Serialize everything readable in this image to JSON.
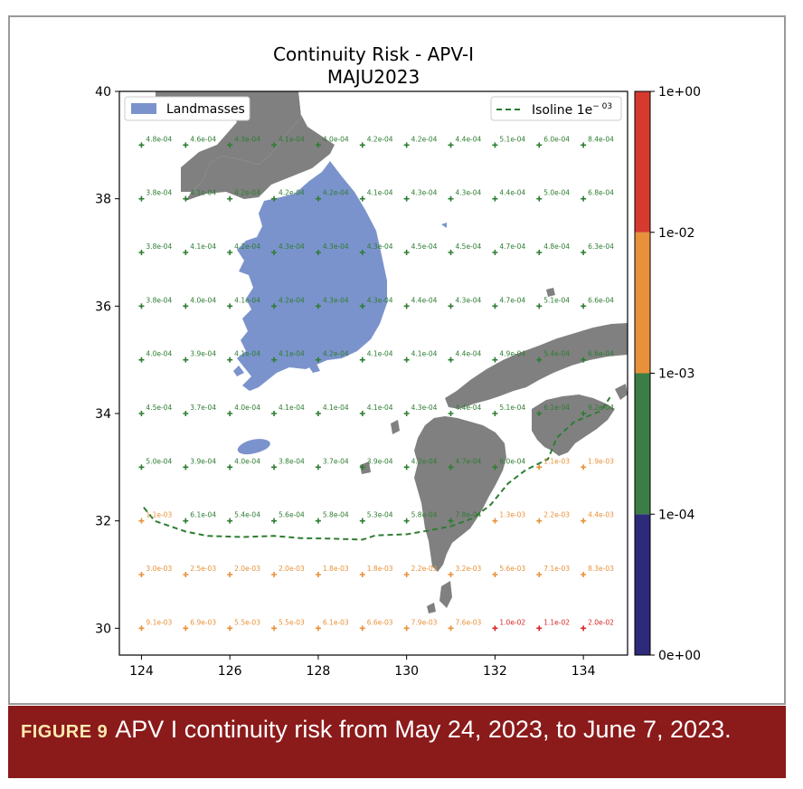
{
  "chart_data": {
    "type": "scatter",
    "title": "Continuity Risk - APV-I",
    "subtitle": "MAJU2023",
    "xlim": [
      123.5,
      135.0
    ],
    "ylim": [
      29.5,
      40.0
    ],
    "xticks": [
      124,
      126,
      128,
      130,
      132,
      134
    ],
    "yticks": [
      30,
      32,
      34,
      36,
      38,
      40
    ],
    "grid": false,
    "legend": {
      "left": {
        "label": "Landmasses",
        "color": "#7b93cc",
        "placement": "top-left"
      },
      "right": {
        "label": "Isoline 1e",
        "superscript": "− 03",
        "color": "#2e7d32",
        "placement": "top-right"
      }
    },
    "colorbar": {
      "tick_labels": [
        "1e+00",
        "1e-02",
        "1e-03",
        "1e-04",
        "0e+00"
      ],
      "colors": [
        "#2d2a7a",
        "#3b7d45",
        "#e8913a",
        "#d63a2e"
      ]
    },
    "lons": [
      124,
      125,
      126,
      127,
      128,
      129,
      130,
      131,
      132,
      133,
      134
    ],
    "rows": [
      {
        "lat": 39,
        "labels": [
          "4.8e-04",
          "4.6e-04",
          "4.3e-04",
          "4.1e-04",
          "4.0e-04",
          "4.2e-04",
          "4.2e-04",
          "4.4e-04",
          "5.1e-04",
          "6.0e-04",
          "8.4e-04"
        ]
      },
      {
        "lat": 38,
        "labels": [
          "3.8e-04",
          "4.1e-04",
          "4.2e-04",
          "4.2e-04",
          "4.2e-04",
          "4.1e-04",
          "4.3e-04",
          "4.3e-04",
          "4.4e-04",
          "5.0e-04",
          "6.8e-04"
        ]
      },
      {
        "lat": 37,
        "labels": [
          "3.8e-04",
          "4.1e-04",
          "4.2e-04",
          "4.3e-04",
          "4.3e-04",
          "4.3e-04",
          "4.5e-04",
          "4.5e-04",
          "4.7e-04",
          "4.8e-04",
          "6.3e-04"
        ]
      },
      {
        "lat": 36,
        "labels": [
          "3.8e-04",
          "4.0e-04",
          "4.1e-04",
          "4.2e-04",
          "4.3e-04",
          "4.3e-04",
          "4.4e-04",
          "4.3e-04",
          "4.7e-04",
          "5.1e-04",
          "6.6e-04"
        ]
      },
      {
        "lat": 35,
        "labels": [
          "4.0e-04",
          "3.9e-04",
          "4.1e-04",
          "4.1e-04",
          "4.2e-04",
          "4.1e-04",
          "4.1e-04",
          "4.4e-04",
          "4.9e-04",
          "5.4e-04",
          "6.6e-04"
        ]
      },
      {
        "lat": 34,
        "labels": [
          "4.5e-04",
          "3.7e-04",
          "4.0e-04",
          "4.1e-04",
          "4.1e-04",
          "4.1e-04",
          "4.3e-04",
          "4.4e-04",
          "5.1e-04",
          "6.1e-04",
          "9.2e-04"
        ]
      },
      {
        "lat": 33,
        "labels": [
          "5.0e-04",
          "3.9e-04",
          "4.0e-04",
          "3.8e-04",
          "3.7e-04",
          "3.9e-04",
          "4.2e-04",
          "4.7e-04",
          "6.0e-04",
          "1.1e-03",
          "1.9e-03"
        ]
      },
      {
        "lat": 32,
        "labels": [
          "1.1e-03",
          "6.1e-04",
          "5.4e-04",
          "5.6e-04",
          "5.8e-04",
          "5.3e-04",
          "5.8e-04",
          "7.8e-04",
          "1.3e-03",
          "2.2e-03",
          "4.4e-03"
        ]
      },
      {
        "lat": 31,
        "labels": [
          "3.0e-03",
          "2.5e-03",
          "2.0e-03",
          "2.0e-03",
          "1.8e-03",
          "1.8e-03",
          "2.2e-03",
          "3.2e-03",
          "5.6e-03",
          "7.1e-03",
          "8.3e-03"
        ]
      },
      {
        "lat": 30,
        "labels": [
          "9.1e-03",
          "6.9e-03",
          "5.5e-03",
          "5.5e-03",
          "6.1e-03",
          "6.6e-03",
          "7.9e-03",
          "7.6e-03",
          "1.0e-02",
          "1.1e-02",
          "2.0e-02"
        ]
      }
    ],
    "isoline": [
      [
        124.05,
        32.25
      ],
      [
        124.3,
        32.0
      ],
      [
        125,
        31.8
      ],
      [
        125.5,
        31.72
      ],
      [
        126.3,
        31.7
      ],
      [
        127,
        31.72
      ],
      [
        127.6,
        31.68
      ],
      [
        128.2,
        31.67
      ],
      [
        129,
        31.65
      ],
      [
        129.3,
        31.73
      ],
      [
        130,
        31.75
      ],
      [
        130.5,
        31.82
      ],
      [
        131,
        31.9
      ],
      [
        131.5,
        32.05
      ],
      [
        131.9,
        32.3
      ],
      [
        132.3,
        32.7
      ],
      [
        132.7,
        32.95
      ],
      [
        133.2,
        33.15
      ],
      [
        133.4,
        33.55
      ],
      [
        133.8,
        33.85
      ],
      [
        134.1,
        33.95
      ],
      [
        134.4,
        34.05
      ],
      [
        134.6,
        34.3
      ]
    ]
  },
  "caption": {
    "label": "FIGURE 9",
    "text": "APV I continuity risk from May 24, 2023, to June 7, 2023."
  }
}
